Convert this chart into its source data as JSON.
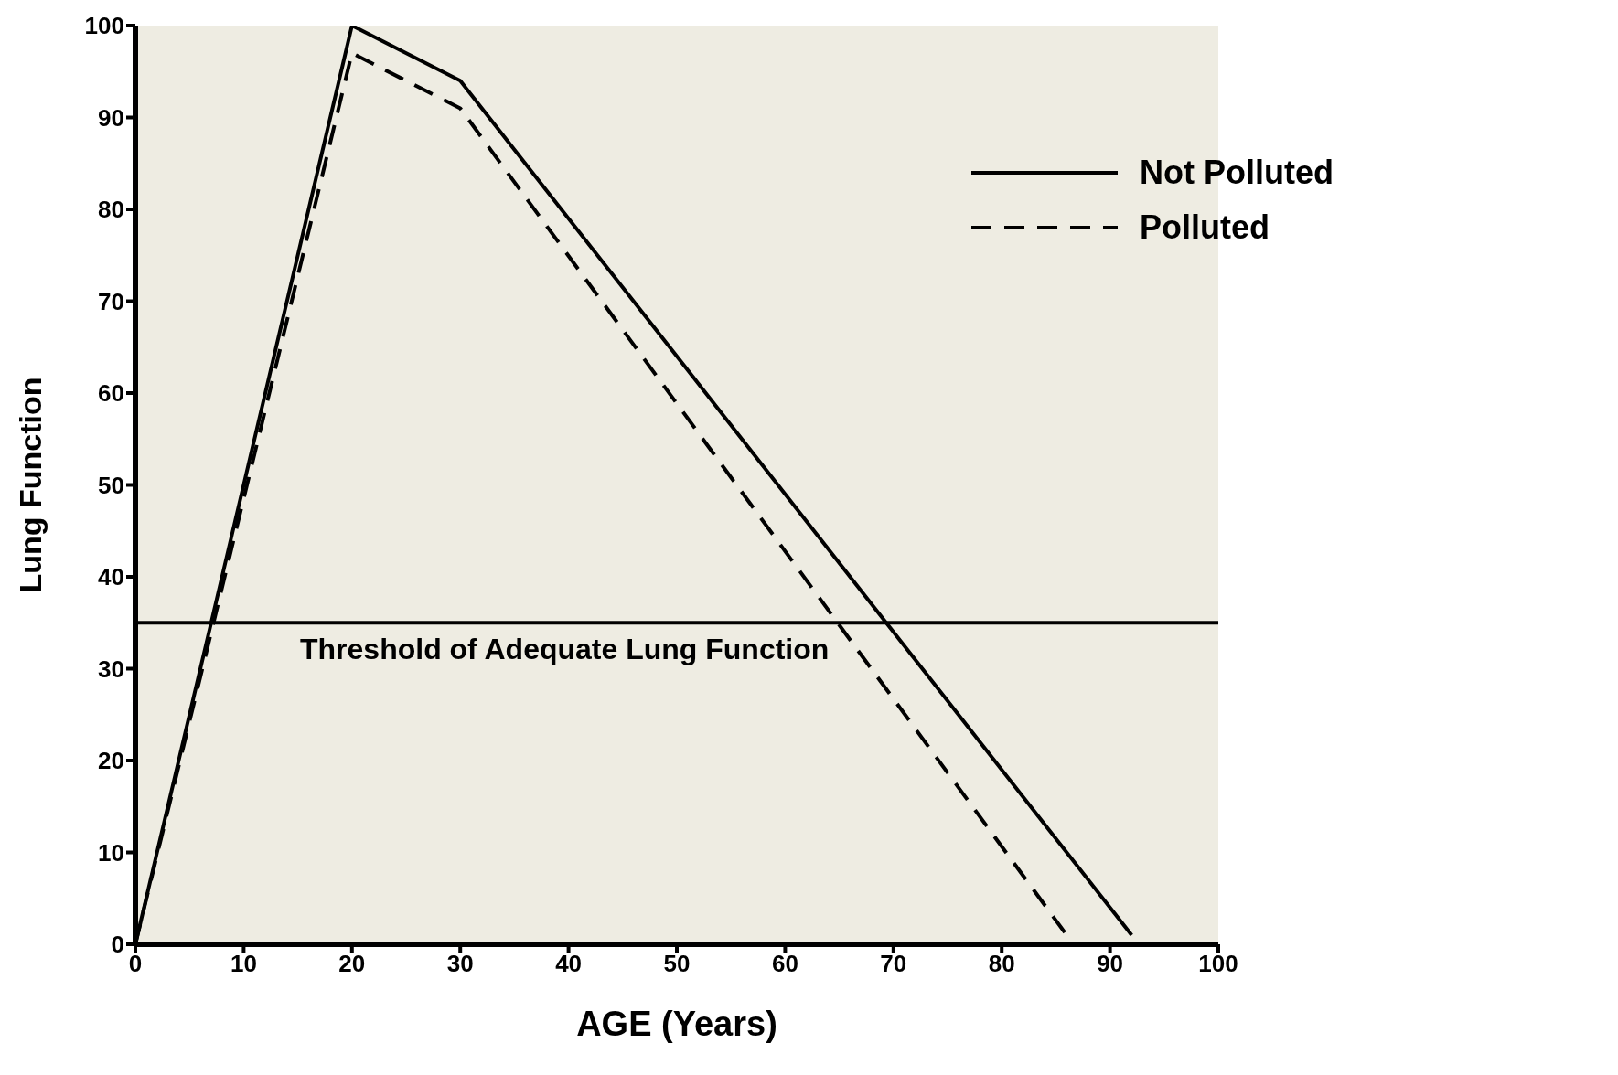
{
  "chart_data": {
    "type": "line",
    "xlabel": "AGE (Years)",
    "ylabel": "Lung Function",
    "xlim": [
      0,
      100
    ],
    "ylim": [
      0,
      100
    ],
    "xticks": [
      0,
      10,
      20,
      30,
      40,
      50,
      60,
      70,
      80,
      90,
      100
    ],
    "yticks": [
      0,
      10,
      20,
      30,
      40,
      50,
      60,
      70,
      80,
      90,
      100
    ],
    "grid": false,
    "legend": "top right",
    "marker": "none",
    "series": [
      {
        "name": "Not Polluted",
        "color": "#000000",
        "line_style": "solid",
        "x": [
          0,
          20,
          30,
          92
        ],
        "values": [
          0,
          100,
          94,
          1
        ]
      },
      {
        "name": "Polluted",
        "color": "#000000",
        "line_style": "dashed",
        "x": [
          0,
          20,
          30,
          86
        ],
        "values": [
          0,
          97,
          91,
          1
        ]
      }
    ],
    "ref_lines": [
      {
        "axis": "y",
        "value": 35,
        "label": "Threshold of Adequate Lung Function",
        "color": "#000000"
      }
    ]
  }
}
